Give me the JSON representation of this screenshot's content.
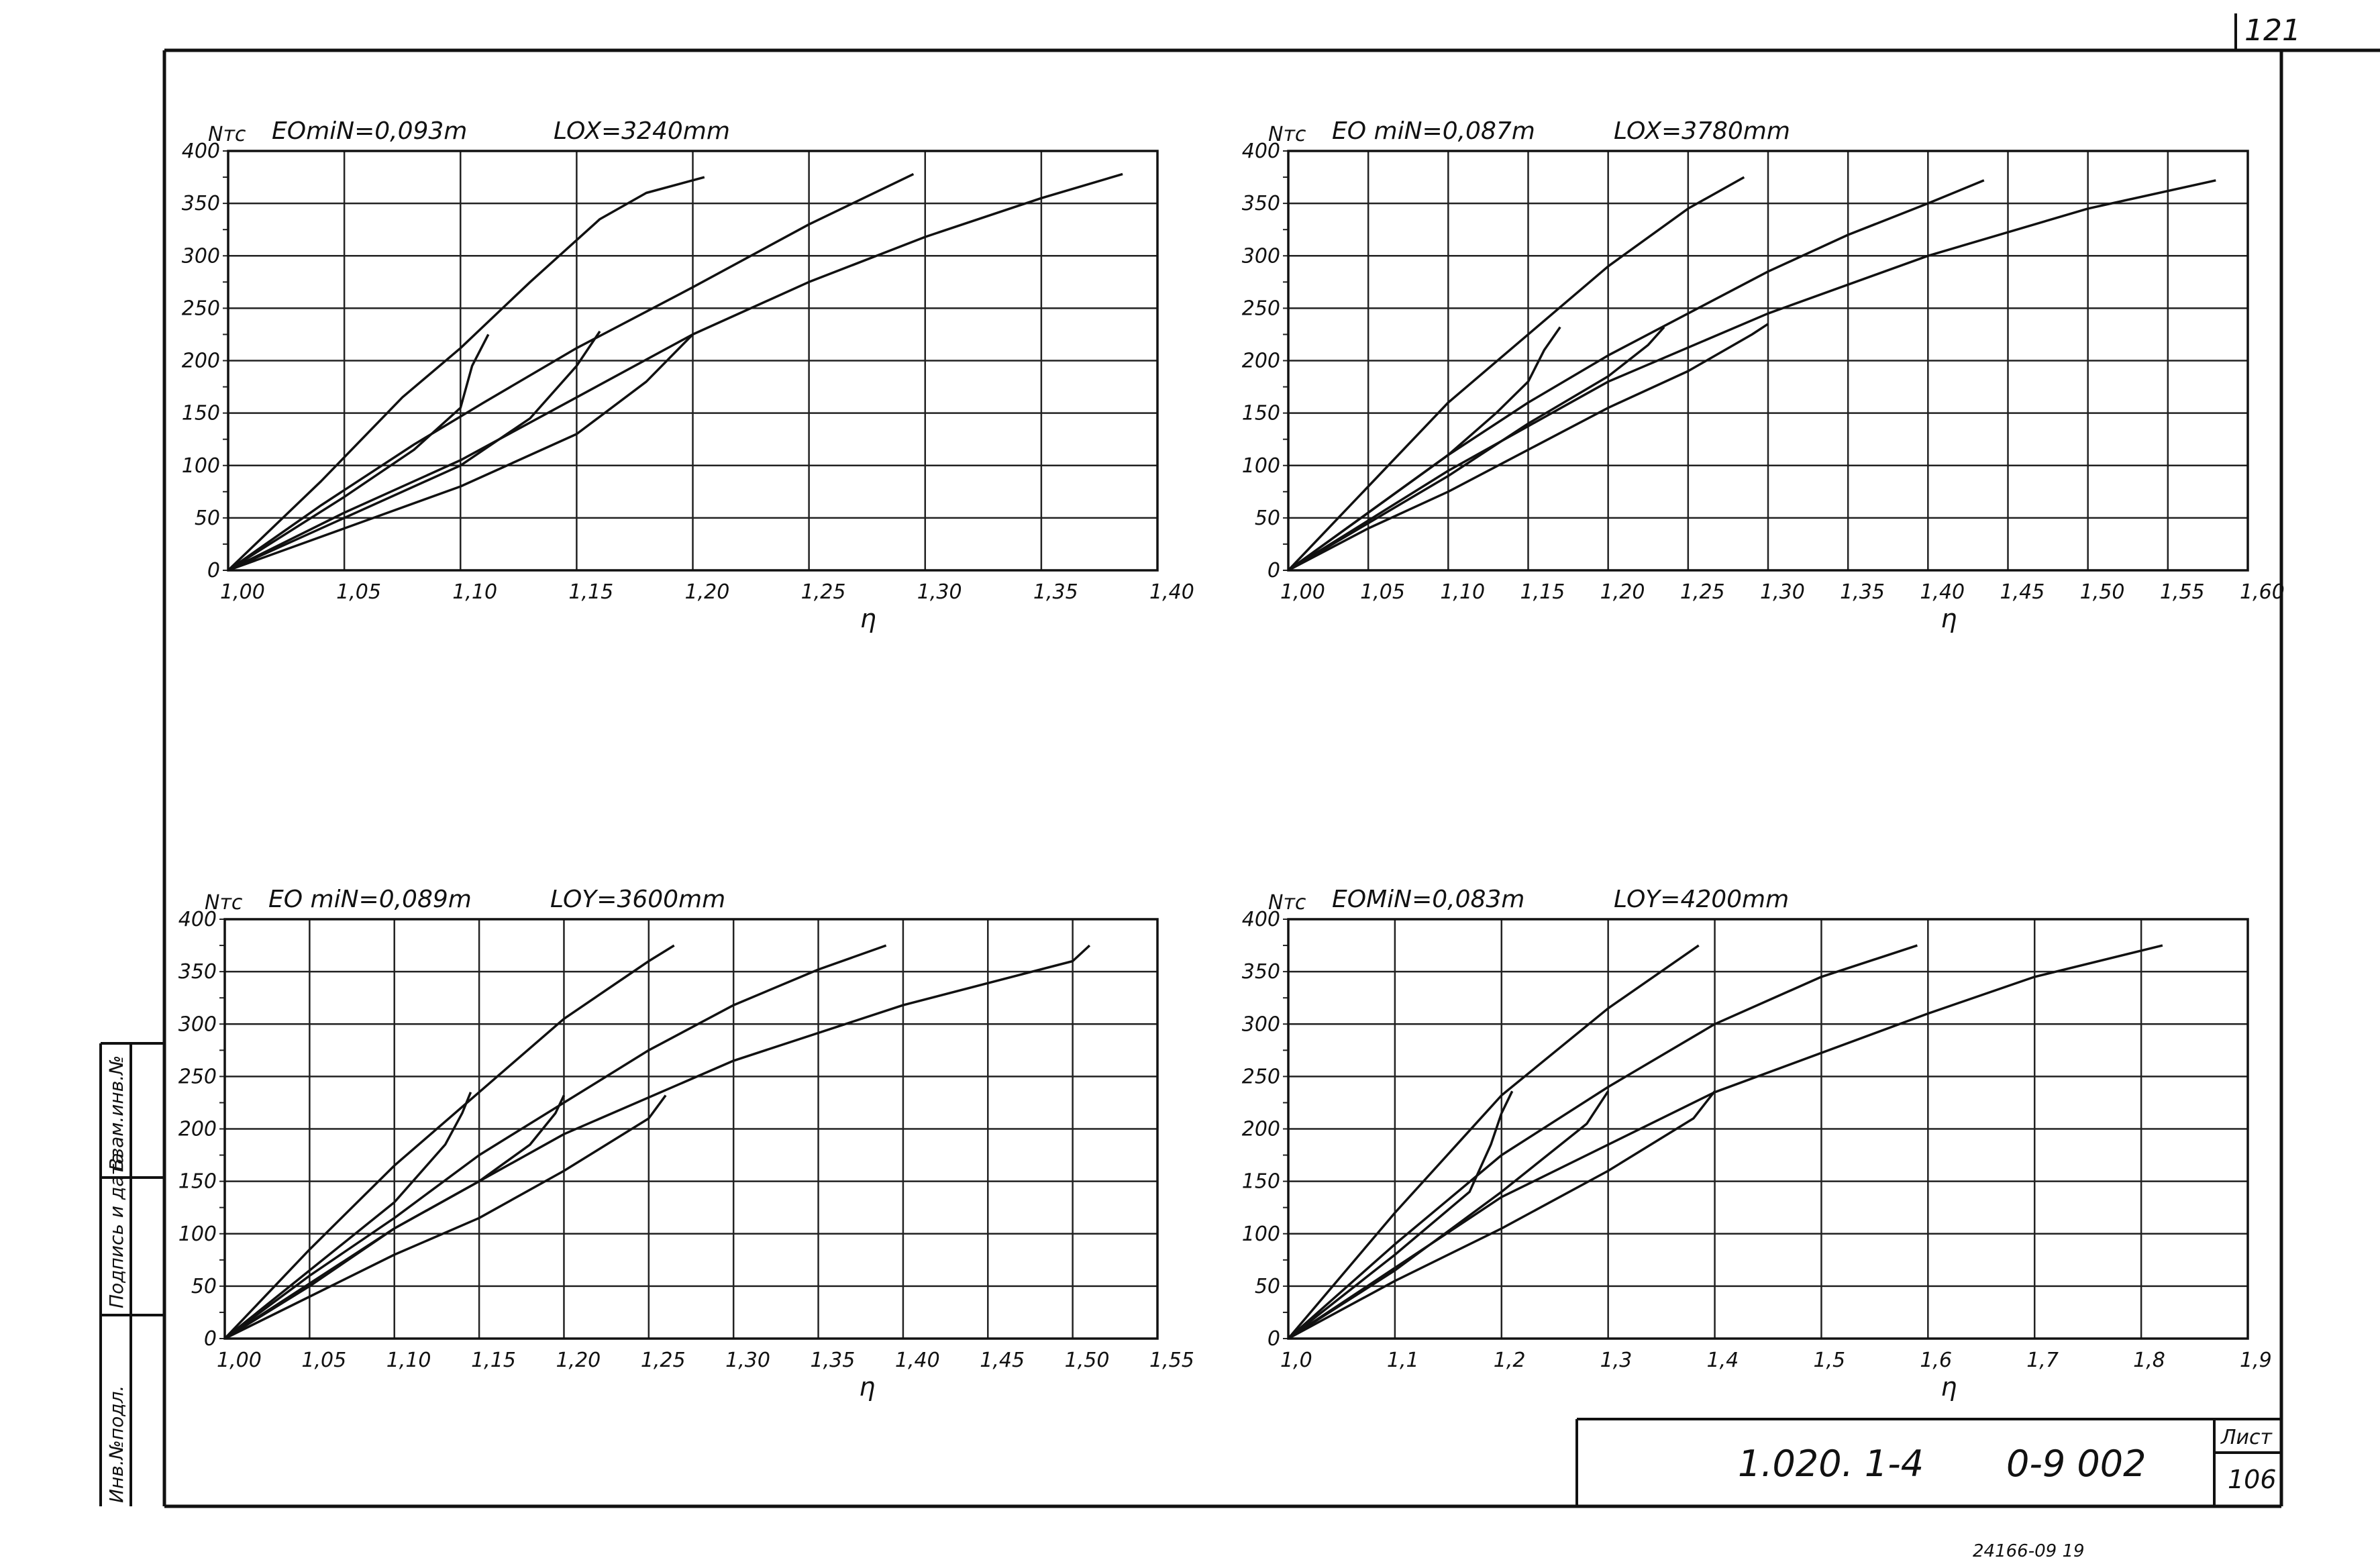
{
  "sheet": {
    "corner_number": "121",
    "title_code": "1.020. 1-4",
    "title_series": "0-9 002",
    "list_label": "Лист",
    "list_number": "106",
    "bottom_note": "24166-09 19",
    "side_labels": [
      "Инв.№подл.",
      "Подпись и дата",
      "Взам.инв.№"
    ]
  },
  "chart_data": [
    {
      "type": "line",
      "ylabel": "Nтс",
      "xlabel": "η",
      "param_left": "EOmiN=0,093m",
      "param_right": "LOX=3240mm",
      "xlim": [
        1.0,
        1.4
      ],
      "ylim": [
        0,
        400
      ],
      "xticks": [
        1.0,
        1.05,
        1.1,
        1.15,
        1.2,
        1.25,
        1.3,
        1.35,
        1.4
      ],
      "xtick_labels": [
        "1,00",
        "1,05",
        "1,10",
        "1,15",
        "1,20",
        "1,25",
        "1,30",
        "1,35",
        "1,40"
      ],
      "yticks": [
        0,
        50,
        100,
        150,
        200,
        250,
        300,
        350,
        400
      ],
      "ytick_labels": [
        "0",
        "50",
        "100",
        "150",
        "200",
        "250",
        "300",
        "350",
        "400"
      ],
      "grid": true,
      "series": [
        {
          "x": [
            1.0,
            1.04,
            1.075,
            1.1,
            1.13,
            1.16,
            1.18,
            1.205
          ],
          "y": [
            0,
            85,
            165,
            212,
            275,
            335,
            360,
            375
          ]
        },
        {
          "x": [
            1.0,
            1.04,
            1.08,
            1.11,
            1.15,
            1.2,
            1.25,
            1.295
          ],
          "y": [
            0,
            62,
            120,
            160,
            212,
            270,
            330,
            378
          ]
        },
        {
          "x": [
            1.0,
            1.05,
            1.1,
            1.15,
            1.2,
            1.25,
            1.3,
            1.35,
            1.385
          ],
          "y": [
            0,
            55,
            105,
            165,
            225,
            275,
            318,
            355,
            378
          ]
        },
        {
          "x": [
            1.0,
            1.05,
            1.08,
            1.1,
            1.105,
            1.112
          ],
          "y": [
            0,
            70,
            115,
            155,
            195,
            225
          ]
        },
        {
          "x": [
            1.0,
            1.05,
            1.1,
            1.13,
            1.15,
            1.16
          ],
          "y": [
            0,
            50,
            100,
            145,
            195,
            228
          ]
        },
        {
          "x": [
            1.0,
            1.05,
            1.1,
            1.15,
            1.18,
            1.2
          ],
          "y": [
            0,
            40,
            80,
            130,
            180,
            225
          ]
        }
      ]
    },
    {
      "type": "line",
      "ylabel": "Nтс",
      "xlabel": "η",
      "param_left": "EO miN=0,087m",
      "param_right": "LOX=3780mm",
      "xlim": [
        1.0,
        1.6
      ],
      "ylim": [
        0,
        400
      ],
      "xticks": [
        1.0,
        1.05,
        1.1,
        1.15,
        1.2,
        1.25,
        1.3,
        1.35,
        1.4,
        1.45,
        1.5,
        1.55,
        1.6
      ],
      "xtick_labels": [
        "1,00",
        "1,05",
        "1,10",
        "1,15",
        "1,20",
        "1,25",
        "1,30",
        "1,35",
        "1,40",
        "1,45",
        "1,50",
        "1,55",
        "1,60"
      ],
      "yticks": [
        0,
        50,
        100,
        150,
        200,
        250,
        300,
        350,
        400
      ],
      "ytick_labels": [
        "0",
        "50",
        "100",
        "150",
        "200",
        "250",
        "300",
        "350",
        "400"
      ],
      "grid": true,
      "series": [
        {
          "x": [
            1.0,
            1.05,
            1.1,
            1.15,
            1.2,
            1.25,
            1.285
          ],
          "y": [
            0,
            80,
            160,
            225,
            290,
            345,
            375
          ]
        },
        {
          "x": [
            1.0,
            1.05,
            1.1,
            1.15,
            1.2,
            1.25,
            1.3,
            1.35,
            1.4,
            1.435
          ],
          "y": [
            0,
            55,
            110,
            160,
            205,
            245,
            285,
            320,
            350,
            372
          ]
        },
        {
          "x": [
            1.0,
            1.1,
            1.2,
            1.3,
            1.4,
            1.5,
            1.58
          ],
          "y": [
            0,
            95,
            180,
            245,
            300,
            345,
            372
          ]
        },
        {
          "x": [
            1.0,
            1.05,
            1.1,
            1.13,
            1.15,
            1.16,
            1.17
          ],
          "y": [
            0,
            55,
            110,
            150,
            180,
            210,
            232
          ]
        },
        {
          "x": [
            1.0,
            1.05,
            1.1,
            1.15,
            1.2,
            1.225,
            1.235
          ],
          "y": [
            0,
            45,
            90,
            140,
            185,
            215,
            232
          ]
        },
        {
          "x": [
            1.0,
            1.05,
            1.1,
            1.15,
            1.2,
            1.25,
            1.29,
            1.3
          ],
          "y": [
            0,
            40,
            75,
            115,
            155,
            190,
            225,
            235
          ]
        }
      ]
    },
    {
      "type": "line",
      "ylabel": "Nтс",
      "xlabel": "η",
      "param_left": "EO miN=0,089m",
      "param_right": "LOY=3600mm",
      "xlim": [
        1.0,
        1.55
      ],
      "ylim": [
        0,
        400
      ],
      "xticks": [
        1.0,
        1.05,
        1.1,
        1.15,
        1.2,
        1.25,
        1.3,
        1.35,
        1.4,
        1.45,
        1.5,
        1.55
      ],
      "xtick_labels": [
        "1,00",
        "1,05",
        "1,10",
        "1,15",
        "1,20",
        "1,25",
        "1,30",
        "1,35",
        "1,40",
        "1,45",
        "1,50",
        "1,55"
      ],
      "yticks": [
        0,
        50,
        100,
        150,
        200,
        250,
        300,
        350,
        400
      ],
      "ytick_labels": [
        "0",
        "50",
        "100",
        "150",
        "200",
        "250",
        "300",
        "350",
        "400"
      ],
      "grid": true,
      "series": [
        {
          "x": [
            1.0,
            1.05,
            1.1,
            1.15,
            1.2,
            1.25,
            1.265
          ],
          "y": [
            0,
            85,
            165,
            235,
            305,
            360,
            375
          ]
        },
        {
          "x": [
            1.0,
            1.05,
            1.1,
            1.15,
            1.2,
            1.25,
            1.3,
            1.35,
            1.39
          ],
          "y": [
            0,
            60,
            115,
            175,
            225,
            275,
            318,
            352,
            375
          ]
        },
        {
          "x": [
            1.0,
            1.1,
            1.2,
            1.3,
            1.4,
            1.5,
            1.51
          ],
          "y": [
            0,
            105,
            195,
            265,
            318,
            360,
            375
          ]
        },
        {
          "x": [
            1.0,
            1.05,
            1.1,
            1.13,
            1.14,
            1.145
          ],
          "y": [
            0,
            65,
            130,
            185,
            215,
            235
          ]
        },
        {
          "x": [
            1.0,
            1.05,
            1.1,
            1.15,
            1.18,
            1.195,
            1.2
          ],
          "y": [
            0,
            50,
            105,
            150,
            185,
            215,
            232
          ]
        },
        {
          "x": [
            1.0,
            1.05,
            1.1,
            1.15,
            1.2,
            1.25,
            1.26
          ],
          "y": [
            0,
            40,
            80,
            115,
            160,
            210,
            232
          ]
        }
      ]
    },
    {
      "type": "line",
      "ylabel": "Nтс",
      "xlabel": "η",
      "param_left": "EOMiN=0,083m",
      "param_right": "LOY=4200mm",
      "xlim": [
        1.0,
        1.9
      ],
      "ylim": [
        0,
        400
      ],
      "xticks": [
        1.0,
        1.1,
        1.2,
        1.3,
        1.4,
        1.5,
        1.6,
        1.7,
        1.8,
        1.9
      ],
      "xtick_labels": [
        "1,0",
        "1,1",
        "1,2",
        "1,3",
        "1,4",
        "1,5",
        "1,6",
        "1,7",
        "1,8",
        "1,9"
      ],
      "yticks": [
        0,
        50,
        100,
        150,
        200,
        250,
        300,
        350,
        400
      ],
      "ytick_labels": [
        "0",
        "50",
        "100",
        "150",
        "200",
        "250",
        "300",
        "350",
        "400"
      ],
      "grid": true,
      "series": [
        {
          "x": [
            1.0,
            1.1,
            1.2,
            1.3,
            1.385
          ],
          "y": [
            0,
            120,
            232,
            315,
            375
          ]
        },
        {
          "x": [
            1.0,
            1.1,
            1.2,
            1.3,
            1.4,
            1.5,
            1.59
          ],
          "y": [
            0,
            90,
            175,
            240,
            300,
            345,
            375
          ]
        },
        {
          "x": [
            1.0,
            1.2,
            1.4,
            1.6,
            1.7,
            1.82
          ],
          "y": [
            0,
            135,
            235,
            310,
            345,
            375
          ]
        },
        {
          "x": [
            1.0,
            1.1,
            1.17,
            1.19,
            1.2,
            1.21
          ],
          "y": [
            0,
            80,
            140,
            185,
            215,
            236
          ]
        },
        {
          "x": [
            1.0,
            1.1,
            1.2,
            1.28,
            1.3
          ],
          "y": [
            0,
            65,
            140,
            205,
            236
          ]
        },
        {
          "x": [
            1.0,
            1.1,
            1.2,
            1.3,
            1.38,
            1.4
          ],
          "y": [
            0,
            55,
            105,
            160,
            210,
            236
          ]
        }
      ]
    }
  ]
}
